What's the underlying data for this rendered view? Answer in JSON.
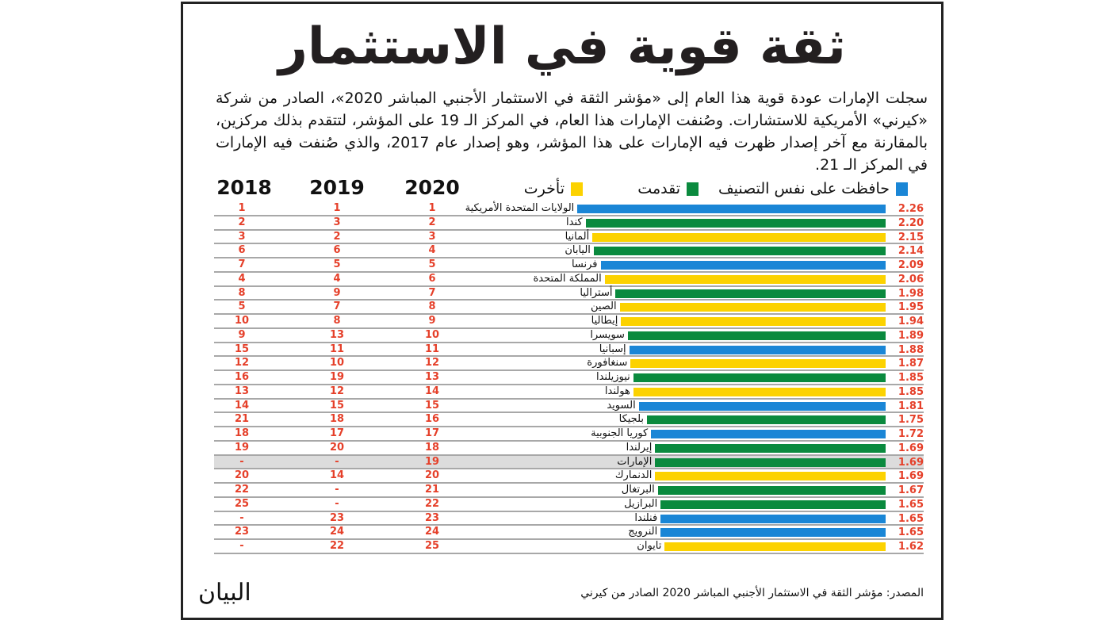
{
  "title": "ثقة قوية في الاستثمار",
  "intro": "سجلت الإمارات عودة قوية هذا العام إلى «مؤشر الثقة في الاستثمار الأجنبي المباشر 2020»، الصادر من شركة «كيرني» الأمريكية للاستشارات. وصُنفت الإمارات هذا العام، في المركز الـ 19 على المؤشر، لتتقدم بذلك مركزين، بالمقارنة مع آخر إصدار ظهرت فيه الإمارات على هذا المؤشر، وهو إصدار عام 2017، والذي صُنفت فيه الإمارات في المركز الـ 21.",
  "legend": {
    "same": {
      "label": "حافظت على نفس التصنيف",
      "color": "#1a86d6"
    },
    "up": {
      "label": "تقدمت",
      "color": "#0a8a3e"
    },
    "down": {
      "label": "تأخرت",
      "color": "#fcd200"
    }
  },
  "column_headers": {
    "y2020": "2020",
    "y2019": "2019",
    "y2018": "2018"
  },
  "colors": {
    "rank_text": "#e5402a",
    "highlight_row": "#dcdcdc"
  },
  "chart_data": {
    "type": "bar",
    "orientation": "horizontal",
    "highlight": "الإمارات",
    "categories": [
      "الولايات المتحدة الأمريكية",
      "كندا",
      "ألمانيا",
      "اليابان",
      "فرنسا",
      "المملكة المتحدة",
      "أستراليا",
      "الصين",
      "إيطاليا",
      "سويسرا",
      "إسبانيا",
      "سنغافورة",
      "نيوزيلندا",
      "هولندا",
      "السويد",
      "بلجيكا",
      "كوريا الجنوبية",
      "إيرلندا",
      "الإمارات",
      "الدنمارك",
      "البرتغال",
      "البرازيل",
      "فنلندا",
      "النرويج",
      "تايوان"
    ],
    "values": [
      "2.26",
      "2.20",
      "2.15",
      "2.14",
      "2.09",
      "2.06",
      "1.98",
      "1.95",
      "1.94",
      "1.89",
      "1.88",
      "1.87",
      "1.85",
      "1.85",
      "1.81",
      "1.75",
      "1.72",
      "1.69",
      "1.69",
      "1.69",
      "1.67",
      "1.65",
      "1.65",
      "1.65",
      "1.62"
    ],
    "status": [
      "same",
      "up",
      "down",
      "up",
      "same",
      "down",
      "up",
      "down",
      "down",
      "up",
      "same",
      "down",
      "up",
      "down",
      "same",
      "up",
      "same",
      "up",
      "up",
      "down",
      "up",
      "up",
      "same",
      "same",
      "down"
    ],
    "rank_2020": [
      "1",
      "2",
      "3",
      "4",
      "5",
      "6",
      "7",
      "8",
      "9",
      "10",
      "11",
      "12",
      "13",
      "14",
      "15",
      "16",
      "17",
      "18",
      "19",
      "20",
      "21",
      "22",
      "23",
      "24",
      "25"
    ],
    "rank_2019": [
      "1",
      "3",
      "2",
      "6",
      "5",
      "4",
      "9",
      "7",
      "8",
      "13",
      "11",
      "10",
      "19",
      "12",
      "15",
      "18",
      "17",
      "20",
      "-",
      "14",
      "-",
      "-",
      "23",
      "24",
      "22"
    ],
    "rank_2018": [
      "1",
      "2",
      "3",
      "6",
      "7",
      "4",
      "8",
      "5",
      "10",
      "9",
      "15",
      "12",
      "16",
      "13",
      "14",
      "21",
      "18",
      "19",
      "-",
      "20",
      "22",
      "25",
      "-",
      "23",
      "-"
    ]
  },
  "footer": {
    "source": "المصدر: مؤشر الثقة في الاستثمار الأجنبي المباشر 2020 الصادر من كيرني",
    "logo": "البيان"
  }
}
